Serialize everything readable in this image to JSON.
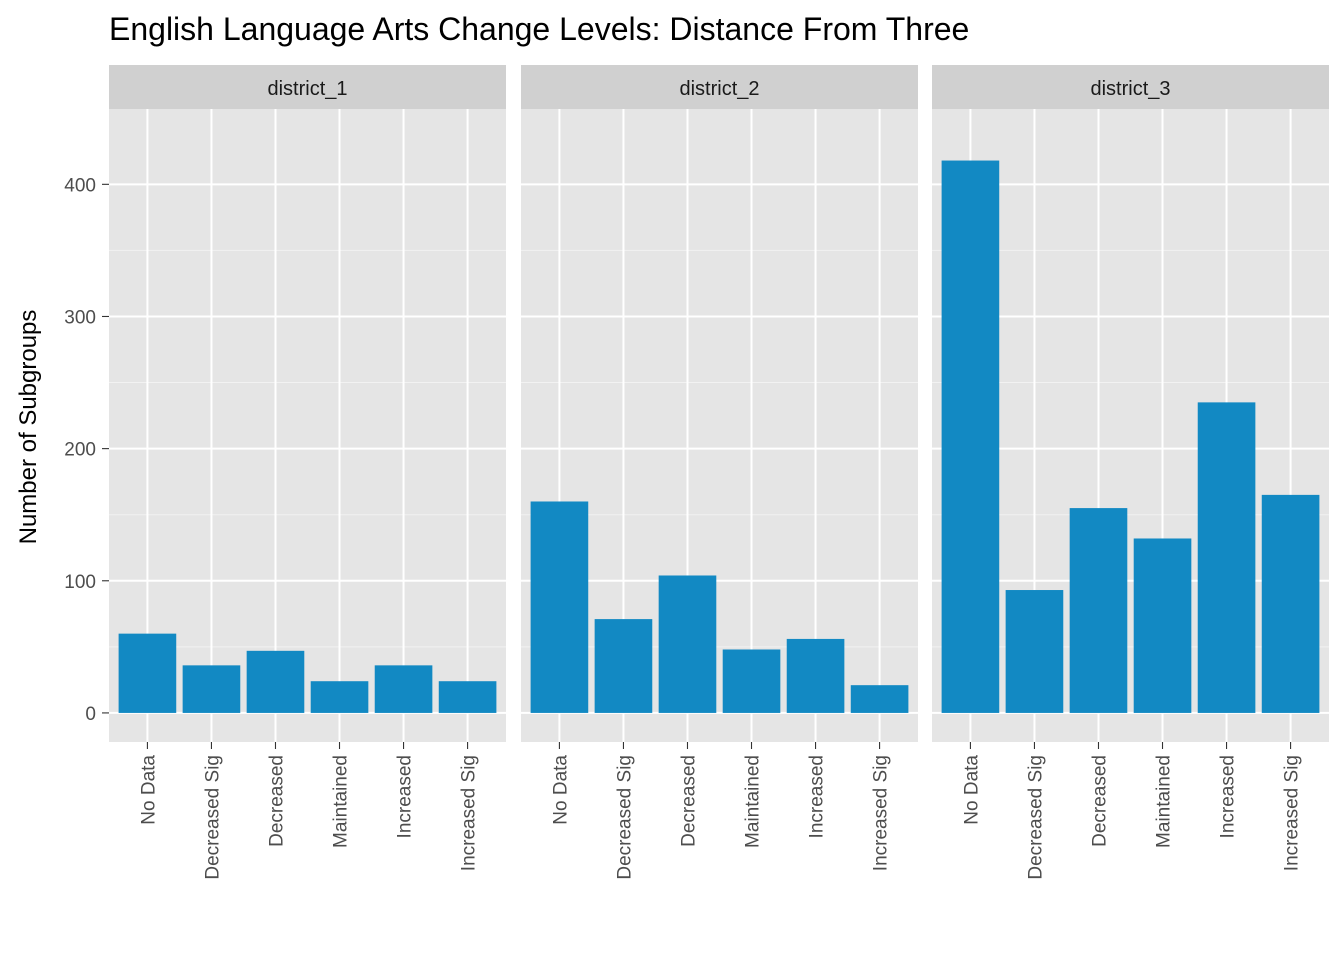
{
  "chart_data": {
    "type": "bar",
    "title": "English Language Arts Change Levels: Distance From Three",
    "xlabel": "",
    "ylabel": "Number of Subgroups",
    "ylim": [
      -22,
      457
    ],
    "yticks": [
      0,
      100,
      200,
      300,
      400
    ],
    "grid": true,
    "facet_by": "district",
    "bar_color": "#1289c3",
    "panel_background": "#e5e5e5",
    "strip_background": "#d0d0d0",
    "categories": [
      "No Data",
      "Decreased Sig",
      "Decreased",
      "Maintained",
      "Increased",
      "Increased Sig"
    ],
    "panels": [
      {
        "name": "district_1",
        "values": [
          60,
          36,
          47,
          24,
          36,
          24
        ]
      },
      {
        "name": "district_2",
        "values": [
          160,
          71,
          104,
          48,
          56,
          21
        ]
      },
      {
        "name": "district_3",
        "values": [
          418,
          93,
          155,
          132,
          235,
          165
        ]
      }
    ]
  }
}
